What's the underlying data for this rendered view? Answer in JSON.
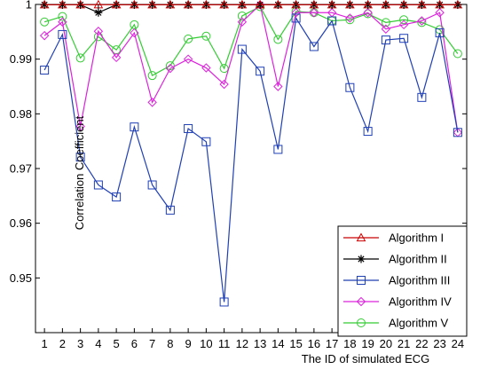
{
  "chart_data": {
    "type": "line",
    "title": "",
    "xlabel": "The ID of simulated ECG",
    "ylabel": "Correlation Coefficient",
    "x": [
      1,
      2,
      3,
      4,
      5,
      6,
      7,
      8,
      9,
      10,
      11,
      12,
      13,
      14,
      15,
      16,
      17,
      18,
      19,
      20,
      21,
      22,
      23,
      24
    ],
    "xlim": [
      0.5,
      24.5
    ],
    "ylim": [
      0.94,
      1.0
    ],
    "yticks": [
      0.95,
      0.96,
      0.97,
      0.98,
      0.99,
      1
    ],
    "ytick_labels": [
      "0.95",
      "0.96",
      "0.97",
      "0.98",
      "0.99",
      "1"
    ],
    "grid": false,
    "legend_position": "bottom-right",
    "series": [
      {
        "name": "Algorithm I",
        "color": "#cc0000",
        "marker": "triangle",
        "values": [
          0.99995,
          0.99995,
          0.99995,
          0.99995,
          0.99995,
          0.99995,
          0.99995,
          0.99995,
          0.99995,
          0.99995,
          0.99995,
          0.99995,
          0.99995,
          0.99995,
          0.99995,
          0.99995,
          0.99995,
          0.99995,
          0.99995,
          0.99995,
          0.99995,
          0.99995,
          0.99995,
          0.99995
        ]
      },
      {
        "name": "Algorithm II",
        "color": "#000000",
        "marker": "asterisk",
        "values": [
          0.99995,
          0.99995,
          0.99995,
          0.9985,
          0.99995,
          0.99995,
          0.99995,
          0.99995,
          0.99995,
          0.99995,
          0.99995,
          0.99995,
          0.99995,
          0.99995,
          0.99995,
          0.99995,
          0.99995,
          0.99995,
          0.99995,
          0.99995,
          0.99995,
          0.99995,
          0.99995,
          0.99995
        ]
      },
      {
        "name": "Algorithm III",
        "color": "#1f3fb5",
        "marker": "square",
        "values": [
          0.988,
          0.9945,
          0.9721,
          0.967,
          0.9648,
          0.9776,
          0.967,
          0.9624,
          0.9773,
          0.9749,
          0.9456,
          0.9918,
          0.9878,
          0.9735,
          0.9975,
          0.9923,
          0.997,
          0.9848,
          0.9768,
          0.9935,
          0.9938,
          0.983,
          0.9948,
          0.9766
        ]
      },
      {
        "name": "Algorithm IV",
        "color": "#dd22dd",
        "marker": "diamond",
        "values": [
          0.9943,
          0.9968,
          0.9777,
          0.9951,
          0.9903,
          0.9948,
          0.9821,
          0.9883,
          0.99,
          0.9884,
          0.9854,
          0.9968,
          0.99995,
          0.985,
          0.9985,
          0.9985,
          0.9985,
          0.9975,
          0.9985,
          0.9955,
          0.9963,
          0.997,
          0.9985,
          0.9766
        ]
      },
      {
        "name": "Algorithm V",
        "color": "#33cc33",
        "marker": "circle",
        "values": [
          0.9968,
          0.9978,
          0.9902,
          0.9941,
          0.9917,
          0.9963,
          0.987,
          0.9888,
          0.9937,
          0.9942,
          0.9883,
          0.9979,
          0.9996,
          0.9936,
          0.9987,
          0.9985,
          0.997,
          0.9972,
          0.9983,
          0.9967,
          0.9972,
          0.9967,
          0.9954,
          0.991
        ]
      }
    ]
  }
}
